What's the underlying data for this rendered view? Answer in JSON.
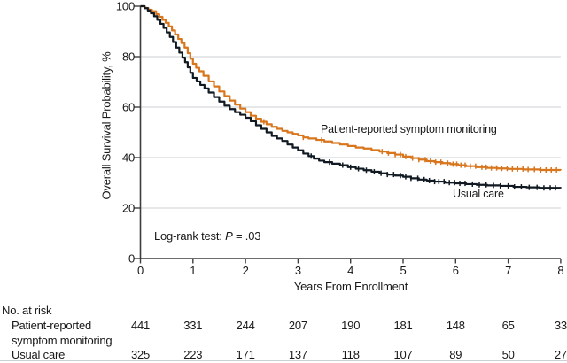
{
  "figure": {
    "background": "#ffffff",
    "text_color": "#181818",
    "axis_color": "#3d3d3d",
    "grid_color": "#cbcfd2"
  },
  "chart_data": {
    "type": "line",
    "subtype": "kaplan-meier-step",
    "title": "",
    "xlabel": "Years From Enrollment",
    "ylabel": "Overall Survival Probability, %",
    "xlim": [
      0,
      8
    ],
    "ylim": [
      0,
      100
    ],
    "x_ticks": [
      0,
      1,
      2,
      3,
      4,
      5,
      6,
      7,
      8
    ],
    "y_ticks": [
      0,
      20,
      40,
      60,
      80,
      100
    ],
    "grid_y": [
      20,
      40,
      60,
      80
    ],
    "grid": "horizontal-only",
    "legend_position": "labels-on-plot",
    "annotation": "Log-rank test: P = .03",
    "annotation_parts": {
      "prefix": "Log-rank test: ",
      "stat": "P",
      "value": " = .03"
    },
    "series": [
      {
        "key": "patient-reported",
        "name": "Patient-reported symptom monitoring",
        "color": "#D8761E",
        "points": [
          [
            0,
            100
          ],
          [
            0.08,
            99.3
          ],
          [
            0.15,
            98.6
          ],
          [
            0.22,
            98
          ],
          [
            0.3,
            96.8
          ],
          [
            0.36,
            95.8
          ],
          [
            0.42,
            94.6
          ],
          [
            0.48,
            93.4
          ],
          [
            0.54,
            92
          ],
          [
            0.6,
            90.4
          ],
          [
            0.66,
            88.8
          ],
          [
            0.72,
            87
          ],
          [
            0.78,
            85.4
          ],
          [
            0.84,
            83.6
          ],
          [
            0.9,
            81.4
          ],
          [
            0.95,
            79.2
          ],
          [
            1.0,
            77.2
          ],
          [
            1.06,
            75.6
          ],
          [
            1.12,
            74.2
          ],
          [
            1.2,
            72.4
          ],
          [
            1.3,
            70.2
          ],
          [
            1.4,
            68.2
          ],
          [
            1.5,
            66.2
          ],
          [
            1.6,
            64.4
          ],
          [
            1.7,
            62.6
          ],
          [
            1.8,
            61
          ],
          [
            1.9,
            59.4
          ],
          [
            2.0,
            58
          ],
          [
            2.1,
            56.6
          ],
          [
            2.2,
            55.4
          ],
          [
            2.3,
            54.2
          ],
          [
            2.4,
            53.2
          ],
          [
            2.5,
            52.2
          ],
          [
            2.6,
            51.4
          ],
          [
            2.7,
            50.6
          ],
          [
            2.8,
            50
          ],
          [
            2.9,
            49.4
          ],
          [
            3.0,
            48.8
          ],
          [
            3.1,
            48
          ],
          [
            3.2,
            47.6
          ],
          [
            3.35,
            47
          ],
          [
            3.5,
            46.4
          ],
          [
            3.65,
            45.8
          ],
          [
            3.8,
            45.2
          ],
          [
            3.95,
            44.6
          ],
          [
            4.1,
            44
          ],
          [
            4.25,
            43.6
          ],
          [
            4.4,
            43
          ],
          [
            4.55,
            42.4
          ],
          [
            4.7,
            41.8
          ],
          [
            4.85,
            41.2
          ],
          [
            5.0,
            40.4
          ],
          [
            5.15,
            39.8
          ],
          [
            5.3,
            39.2
          ],
          [
            5.45,
            38.6
          ],
          [
            5.6,
            38.2
          ],
          [
            5.75,
            37.8
          ],
          [
            5.9,
            37.4
          ],
          [
            6.05,
            37
          ],
          [
            6.2,
            36.6
          ],
          [
            6.4,
            36.2
          ],
          [
            6.6,
            35.9
          ],
          [
            6.8,
            35.7
          ],
          [
            7.0,
            35.5
          ],
          [
            7.3,
            35.3
          ],
          [
            7.6,
            35.1
          ],
          [
            8.0,
            35
          ]
        ],
        "censor_times": [
          2.35,
          3.1,
          3.45,
          4.6,
          4.72,
          4.85,
          4.95,
          5.05,
          5.18,
          5.3,
          5.42,
          5.52,
          5.62,
          5.72,
          5.85,
          5.95,
          6.02,
          6.1,
          6.18,
          6.28,
          6.38,
          6.5,
          6.58,
          6.68,
          6.78,
          6.88,
          6.98,
          7.08,
          7.18,
          7.28,
          7.38,
          7.5,
          7.62,
          7.72,
          7.82,
          7.92
        ]
      },
      {
        "key": "usual-care",
        "name": "Usual care",
        "color": "#111922",
        "points": [
          [
            0,
            100
          ],
          [
            0.08,
            99.2
          ],
          [
            0.14,
            98.3
          ],
          [
            0.2,
            97.2
          ],
          [
            0.26,
            96
          ],
          [
            0.32,
            94.6
          ],
          [
            0.38,
            93
          ],
          [
            0.44,
            91.4
          ],
          [
            0.5,
            89.6
          ],
          [
            0.56,
            87.8
          ],
          [
            0.62,
            85.8
          ],
          [
            0.68,
            83.6
          ],
          [
            0.74,
            81.6
          ],
          [
            0.8,
            79.6
          ],
          [
            0.85,
            77.8
          ],
          [
            0.9,
            75.8
          ],
          [
            0.95,
            73.6
          ],
          [
            1.0,
            71.6
          ],
          [
            1.07,
            70.2
          ],
          [
            1.14,
            68.8
          ],
          [
            1.22,
            67.4
          ],
          [
            1.3,
            65.8
          ],
          [
            1.4,
            64
          ],
          [
            1.5,
            62.2
          ],
          [
            1.6,
            60.6
          ],
          [
            1.7,
            59.2
          ],
          [
            1.8,
            58
          ],
          [
            1.9,
            57
          ],
          [
            2.0,
            55.8
          ],
          [
            2.1,
            54.4
          ],
          [
            2.2,
            52.8
          ],
          [
            2.3,
            51.4
          ],
          [
            2.4,
            50
          ],
          [
            2.5,
            48.6
          ],
          [
            2.6,
            47.6
          ],
          [
            2.7,
            46.6
          ],
          [
            2.8,
            45.2
          ],
          [
            2.9,
            44
          ],
          [
            3.0,
            42.9
          ],
          [
            3.1,
            41.6
          ],
          [
            3.2,
            40.6
          ],
          [
            3.3,
            39.6
          ],
          [
            3.4,
            38.8
          ],
          [
            3.5,
            38.2
          ],
          [
            3.65,
            37.6
          ],
          [
            3.8,
            37
          ],
          [
            3.95,
            36.2
          ],
          [
            4.1,
            35.6
          ],
          [
            4.25,
            35
          ],
          [
            4.4,
            34.4
          ],
          [
            4.55,
            33.8
          ],
          [
            4.7,
            33.3
          ],
          [
            4.85,
            32.9
          ],
          [
            5.0,
            32.4
          ],
          [
            5.15,
            31.8
          ],
          [
            5.3,
            31.3
          ],
          [
            5.45,
            30.9
          ],
          [
            5.6,
            30.5
          ],
          [
            5.8,
            30.1
          ],
          [
            6.0,
            29.8
          ],
          [
            6.2,
            29.5
          ],
          [
            6.4,
            29.2
          ],
          [
            6.6,
            29
          ],
          [
            6.85,
            28.8
          ],
          [
            7.1,
            28.4
          ],
          [
            7.35,
            28.2
          ],
          [
            7.6,
            28
          ],
          [
            8.0,
            27.9
          ]
        ],
        "censor_times": [
          3.25,
          3.6,
          3.85,
          4.0,
          4.15,
          4.3,
          4.45,
          4.58,
          4.7,
          4.82,
          4.95,
          5.05,
          5.15,
          5.28,
          5.4,
          5.5,
          5.6,
          5.68,
          5.78,
          5.88,
          5.98,
          6.08,
          6.18,
          6.32,
          6.45,
          6.58,
          6.72,
          6.85,
          7.0,
          7.12,
          7.25,
          7.4,
          7.55,
          7.68,
          7.8,
          7.9
        ]
      }
    ],
    "at_risk": {
      "header": "No. at risk",
      "times": [
        0,
        1,
        2,
        3,
        4,
        5,
        6,
        7,
        8
      ],
      "rows": [
        {
          "label_line1": "Patient-reported",
          "label_line2": "symptom monitoring",
          "values": [
            "441",
            "331",
            "244",
            "207",
            "190",
            "181",
            "148",
            "65",
            "33"
          ]
        },
        {
          "label_line1": "Usual care",
          "label_line2": "",
          "values": [
            "325",
            "223",
            "171",
            "137",
            "118",
            "107",
            "89",
            "50",
            "27"
          ]
        }
      ]
    }
  }
}
